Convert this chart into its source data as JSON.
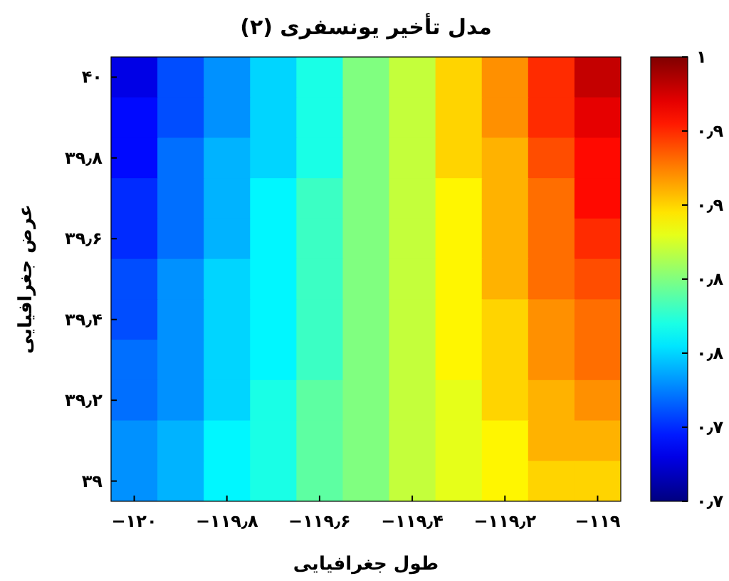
{
  "chart_data": {
    "type": "heatmap",
    "title": "مدل تأخیر یونسفری (۲)",
    "xlabel": "طول جغرافیایی",
    "ylabel": "عرض جغرافیایی",
    "categories": [
      "−۱۲۰",
      null,
      "−۱۱۹٫۸",
      null,
      "−۱۱۹٫۶",
      null,
      "−۱۱۹٫۴",
      null,
      "−۱۱۹٫۲",
      null,
      "−۱۱۹"
    ],
    "y_categories": [
      "۴۰",
      null,
      "۳۹٫۸",
      null,
      "۳۹٫۶",
      null,
      "۳۹٫۴",
      null,
      "۳۹٫۲",
      null,
      "۳۹"
    ],
    "clim": [
      0.7,
      1
    ],
    "cticks": [
      {
        "value": 0.7,
        "label": "۰٫۷"
      },
      {
        "value": 0.75,
        "label": "۰٫۷"
      },
      {
        "value": 0.8,
        "label": "۰٫۸"
      },
      {
        "value": 0.85,
        "label": "۰٫۸"
      },
      {
        "value": 0.9,
        "label": "۰٫۹"
      },
      {
        "value": 0.95,
        "label": "۰٫۹"
      },
      {
        "value": 1,
        "label": "۱"
      }
    ],
    "cells": [
      [
        0.73,
        0.76,
        0.78,
        0.8,
        0.82,
        0.85,
        0.87,
        0.9,
        0.92,
        0.95,
        0.98
      ],
      [
        0.74,
        0.76,
        0.78,
        0.8,
        0.82,
        0.85,
        0.87,
        0.9,
        0.92,
        0.95,
        0.97
      ],
      [
        0.74,
        0.77,
        0.79,
        0.8,
        0.82,
        0.85,
        0.87,
        0.9,
        0.91,
        0.94,
        0.96
      ],
      [
        0.75,
        0.77,
        0.79,
        0.81,
        0.83,
        0.85,
        0.87,
        0.89,
        0.91,
        0.93,
        0.96
      ],
      [
        0.75,
        0.77,
        0.79,
        0.81,
        0.83,
        0.85,
        0.87,
        0.89,
        0.91,
        0.93,
        0.95
      ],
      [
        0.76,
        0.78,
        0.8,
        0.81,
        0.83,
        0.85,
        0.87,
        0.89,
        0.91,
        0.93,
        0.94
      ],
      [
        0.76,
        0.78,
        0.8,
        0.81,
        0.83,
        0.85,
        0.87,
        0.89,
        0.9,
        0.92,
        0.93
      ],
      [
        0.77,
        0.78,
        0.8,
        0.81,
        0.83,
        0.85,
        0.87,
        0.89,
        0.9,
        0.92,
        0.93
      ],
      [
        0.77,
        0.78,
        0.8,
        0.82,
        0.84,
        0.85,
        0.87,
        0.88,
        0.9,
        0.91,
        0.92
      ],
      [
        0.78,
        0.79,
        0.81,
        0.82,
        0.84,
        0.85,
        0.87,
        0.88,
        0.89,
        0.91,
        0.91
      ],
      [
        0.78,
        0.79,
        0.81,
        0.82,
        0.84,
        0.85,
        0.87,
        0.88,
        0.89,
        0.9,
        0.9
      ]
    ]
  }
}
